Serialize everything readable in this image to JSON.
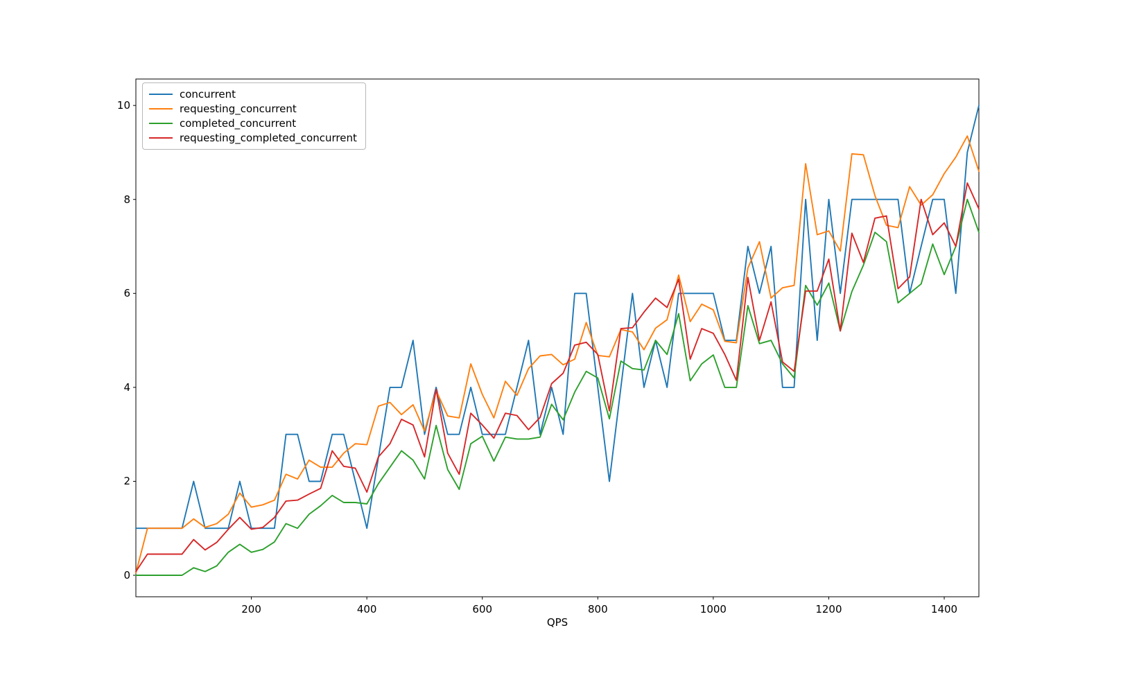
{
  "chart_data": {
    "type": "line",
    "title": "",
    "xlabel": "QPS",
    "ylabel": "",
    "grid": false,
    "legend_position": "upper left",
    "xlim": [
      0,
      1460
    ],
    "ylim": [
      -0.457,
      10.563
    ],
    "xticks": [
      200,
      400,
      600,
      800,
      1000,
      1200,
      1400
    ],
    "yticks": [
      0,
      2,
      4,
      6,
      8,
      10
    ],
    "x": [
      0,
      20,
      40,
      60,
      80,
      100,
      120,
      140,
      160,
      180,
      200,
      220,
      240,
      260,
      280,
      300,
      320,
      340,
      360,
      380,
      400,
      420,
      440,
      460,
      480,
      500,
      520,
      540,
      560,
      580,
      600,
      620,
      640,
      660,
      680,
      700,
      720,
      740,
      760,
      780,
      800,
      820,
      840,
      860,
      880,
      900,
      920,
      940,
      960,
      980,
      1000,
      1020,
      1040,
      1060,
      1080,
      1100,
      1120,
      1140,
      1160,
      1180,
      1200,
      1220,
      1240,
      1260,
      1280,
      1300,
      1320,
      1340,
      1360,
      1380,
      1400,
      1420,
      1440,
      1460
    ],
    "series": [
      {
        "name": "concurrent",
        "color": "#1f77b4",
        "values": [
          1,
          1,
          1,
          1,
          1,
          2,
          1,
          1,
          1,
          2,
          1,
          1,
          1,
          3,
          3,
          2,
          2,
          3,
          3,
          2,
          1,
          2.5,
          4,
          4,
          5,
          3,
          4,
          3,
          3,
          4,
          3,
          3,
          3,
          4,
          5,
          3,
          4,
          3,
          6,
          6,
          4,
          2,
          4,
          6,
          4,
          5,
          4,
          6,
          6,
          6,
          6,
          5,
          5,
          7,
          6,
          7,
          4,
          4,
          8,
          5,
          8,
          6,
          8,
          8,
          8,
          8,
          8,
          6,
          7,
          8,
          8,
          6,
          9,
          10
        ]
      },
      {
        "name": "requesting_concurrent",
        "color": "#ff7f0e",
        "values": [
          0.05,
          1.0,
          1.0,
          1.0,
          1.0,
          1.2,
          1.02,
          1.1,
          1.3,
          1.75,
          1.45,
          1.5,
          1.6,
          2.15,
          2.05,
          2.45,
          2.3,
          2.3,
          2.6,
          2.8,
          2.78,
          3.6,
          3.68,
          3.42,
          3.63,
          3.07,
          3.93,
          3.39,
          3.35,
          4.5,
          3.85,
          3.35,
          4.13,
          3.83,
          4.4,
          4.67,
          4.7,
          4.48,
          4.6,
          5.38,
          4.68,
          4.65,
          5.23,
          5.18,
          4.8,
          5.26,
          5.44,
          6.39,
          5.4,
          5.77,
          5.65,
          4.98,
          4.95,
          6.54,
          7.1,
          5.9,
          6.12,
          6.17,
          8.76,
          7.25,
          7.33,
          6.9,
          8.97,
          8.95,
          8.08,
          7.45,
          7.4,
          8.27,
          7.88,
          8.1,
          8.55,
          8.9,
          9.35,
          8.6
        ]
      },
      {
        "name": "completed_concurrent",
        "color": "#2ca02c",
        "values": [
          0,
          0,
          0,
          0,
          0,
          0.16,
          0.08,
          0.2,
          0.49,
          0.66,
          0.49,
          0.55,
          0.71,
          1.1,
          1.0,
          1.3,
          1.48,
          1.7,
          1.55,
          1.55,
          1.52,
          1.95,
          2.3,
          2.65,
          2.45,
          2.05,
          3.19,
          2.25,
          1.83,
          2.8,
          2.96,
          2.43,
          2.94,
          2.9,
          2.9,
          2.94,
          3.64,
          3.31,
          3.9,
          4.34,
          4.2,
          3.33,
          4.56,
          4.4,
          4.37,
          5.0,
          4.7,
          5.57,
          4.14,
          4.5,
          4.69,
          4.0,
          4.0,
          5.74,
          4.93,
          5.0,
          4.5,
          4.2,
          6.17,
          5.75,
          6.22,
          5.2,
          6.04,
          6.6,
          7.3,
          7.1,
          5.8,
          6.0,
          6.2,
          7.05,
          6.4,
          7.0,
          8.0,
          7.3
        ]
      },
      {
        "name": "requesting_completed_concurrent",
        "color": "#d62728",
        "values": [
          0.08,
          0.45,
          0.45,
          0.45,
          0.45,
          0.76,
          0.54,
          0.7,
          0.98,
          1.23,
          0.98,
          1.02,
          1.23,
          1.58,
          1.6,
          1.73,
          1.85,
          2.65,
          2.32,
          2.28,
          1.77,
          2.52,
          2.8,
          3.32,
          3.2,
          2.52,
          3.96,
          2.6,
          2.15,
          3.45,
          3.2,
          2.92,
          3.45,
          3.4,
          3.1,
          3.36,
          4.08,
          4.3,
          4.9,
          4.96,
          4.7,
          3.5,
          5.25,
          5.27,
          5.6,
          5.9,
          5.7,
          6.3,
          4.6,
          5.25,
          5.15,
          4.7,
          4.15,
          6.34,
          5.0,
          5.82,
          4.54,
          4.34,
          6.05,
          6.05,
          6.73,
          5.2,
          7.28,
          6.66,
          7.6,
          7.65,
          6.1,
          6.35,
          8.0,
          7.25,
          7.5,
          7.0,
          8.35,
          7.8
        ]
      }
    ]
  }
}
